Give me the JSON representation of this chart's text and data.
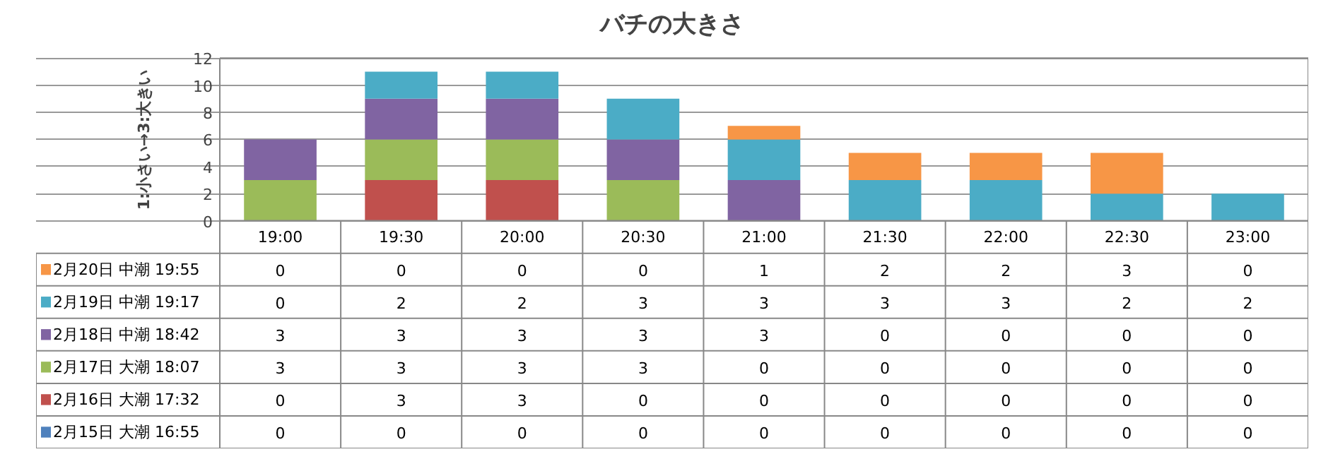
{
  "chart_data": {
    "type": "bar",
    "title": "バチの大きさ",
    "ylabel": "1:小さい→3:大きい",
    "stacked": true,
    "data_labels": true,
    "legend": "bottom",
    "grid": "y",
    "categories": [
      "19:00",
      "19:30",
      "20:00",
      "20:30",
      "21:00",
      "21:30",
      "22:00",
      "22:30",
      "23:00"
    ],
    "ylim": [
      0,
      12
    ],
    "yticks": [
      0,
      2,
      4,
      6,
      8,
      10,
      12
    ],
    "series": [
      {
        "name": "2月15日 大潮 16:55",
        "color": "#4f81bd",
        "values": [
          0,
          0,
          0,
          0,
          0,
          0,
          0,
          0,
          0
        ]
      },
      {
        "name": "2月16日 大潮 17:32",
        "color": "#c0504d",
        "values": [
          0,
          3,
          3,
          0,
          0,
          0,
          0,
          0,
          0
        ]
      },
      {
        "name": "2月17日 大潮 18:07",
        "color": "#9bbb59",
        "values": [
          3,
          3,
          3,
          3,
          0,
          0,
          0,
          0,
          0
        ]
      },
      {
        "name": "2月18日 中潮 18:42",
        "color": "#8064a2",
        "values": [
          3,
          3,
          3,
          3,
          3,
          0,
          0,
          0,
          0
        ]
      },
      {
        "name": "2月19日 中潮 19:17",
        "color": "#4bacc6",
        "values": [
          0,
          2,
          2,
          3,
          3,
          3,
          3,
          2,
          2
        ]
      },
      {
        "name": "2月20日 中潮 19:55",
        "color": "#f79646",
        "values": [
          0,
          0,
          0,
          0,
          1,
          2,
          2,
          3,
          0
        ]
      }
    ]
  }
}
